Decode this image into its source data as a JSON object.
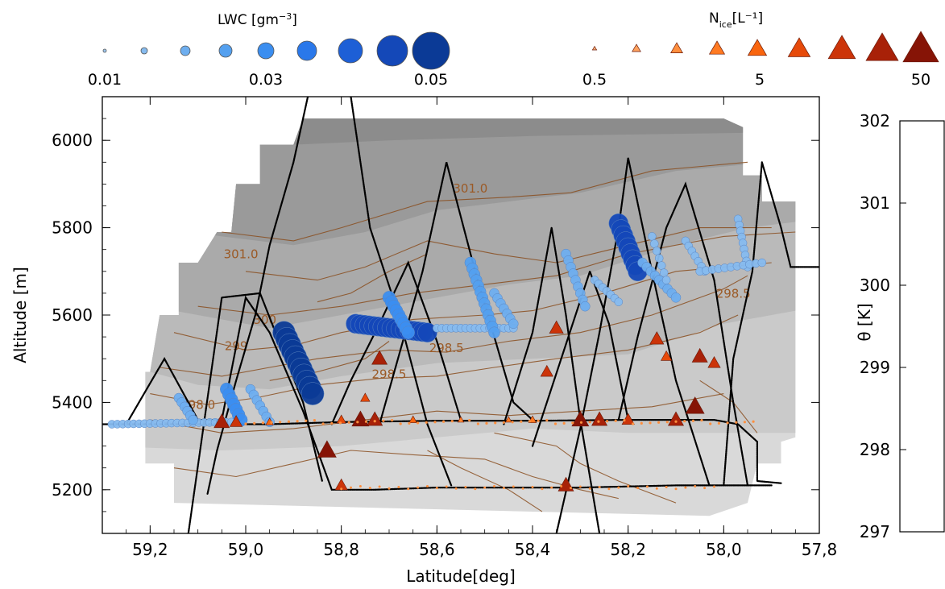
{
  "chart_data": {
    "type": "scatter",
    "xlabel": "Latitude[deg]",
    "ylabel": "Altitude [m]",
    "x_reversed": true,
    "xlim": [
      59.3,
      57.8
    ],
    "ylim": [
      5100,
      6100
    ],
    "x_ticks": [
      "59.2",
      "59.0",
      "58.8",
      "58.6",
      "58.4",
      "58.2",
      "58.0",
      "57.8"
    ],
    "y_ticks": [
      "5200",
      "5400",
      "5600",
      "5800",
      "6000"
    ],
    "colorbar": {
      "label": "θ [K]",
      "range": [
        297,
        302
      ],
      "ticks": [
        "297",
        "298",
        "299",
        "300",
        "301",
        "302"
      ],
      "colors": [
        "#d9d9d9",
        "#cacaca",
        "#bababa",
        "#aaaaaa",
        "#9a9a9a",
        "#8c8c8c"
      ]
    },
    "contour_labels": [
      {
        "text": "301.0",
        "x": 58.53,
        "y": 5880
      },
      {
        "text": "301.0",
        "x": 59.01,
        "y": 5730
      },
      {
        "text": "300",
        "x": 58.96,
        "y": 5580
      },
      {
        "text": "299",
        "x": 59.02,
        "y": 5520
      },
      {
        "text": "298.5",
        "x": 58.7,
        "y": 5455
      },
      {
        "text": "298.5",
        "x": 58.58,
        "y": 5515
      },
      {
        "text": "298.0",
        "x": 59.1,
        "y": 5385
      },
      {
        "text": "298.5",
        "x": 57.98,
        "y": 5640
      }
    ],
    "lwc_legend": {
      "title": "LWC [gm⁻³]",
      "tick_labels": [
        "0.01",
        "0.03",
        "0.05"
      ],
      "colors": [
        "#9cc6ee",
        "#86bbef",
        "#6eaeef",
        "#54a0ef",
        "#3b8ef0",
        "#2a78ea",
        "#1d5fd6",
        "#1448b8",
        "#0b3a96"
      ]
    },
    "nice_legend": {
      "title": "N",
      "title_sub": "ice",
      "title_unit": "[L⁻¹]",
      "tick_labels": [
        "0.5",
        "5",
        "50"
      ],
      "colors": [
        "#ffb27a",
        "#ffa25e",
        "#ff8f3e",
        "#ff7a22",
        "#f9650e",
        "#e64a0a",
        "#cc3409",
        "#a82108",
        "#861406"
      ]
    },
    "series": [
      {
        "name": "Flight track",
        "color": "#000000"
      },
      {
        "name": "LWC",
        "color": "#3b8ef0"
      },
      {
        "name": "N_ice",
        "color": "#e64a0a"
      }
    ]
  }
}
